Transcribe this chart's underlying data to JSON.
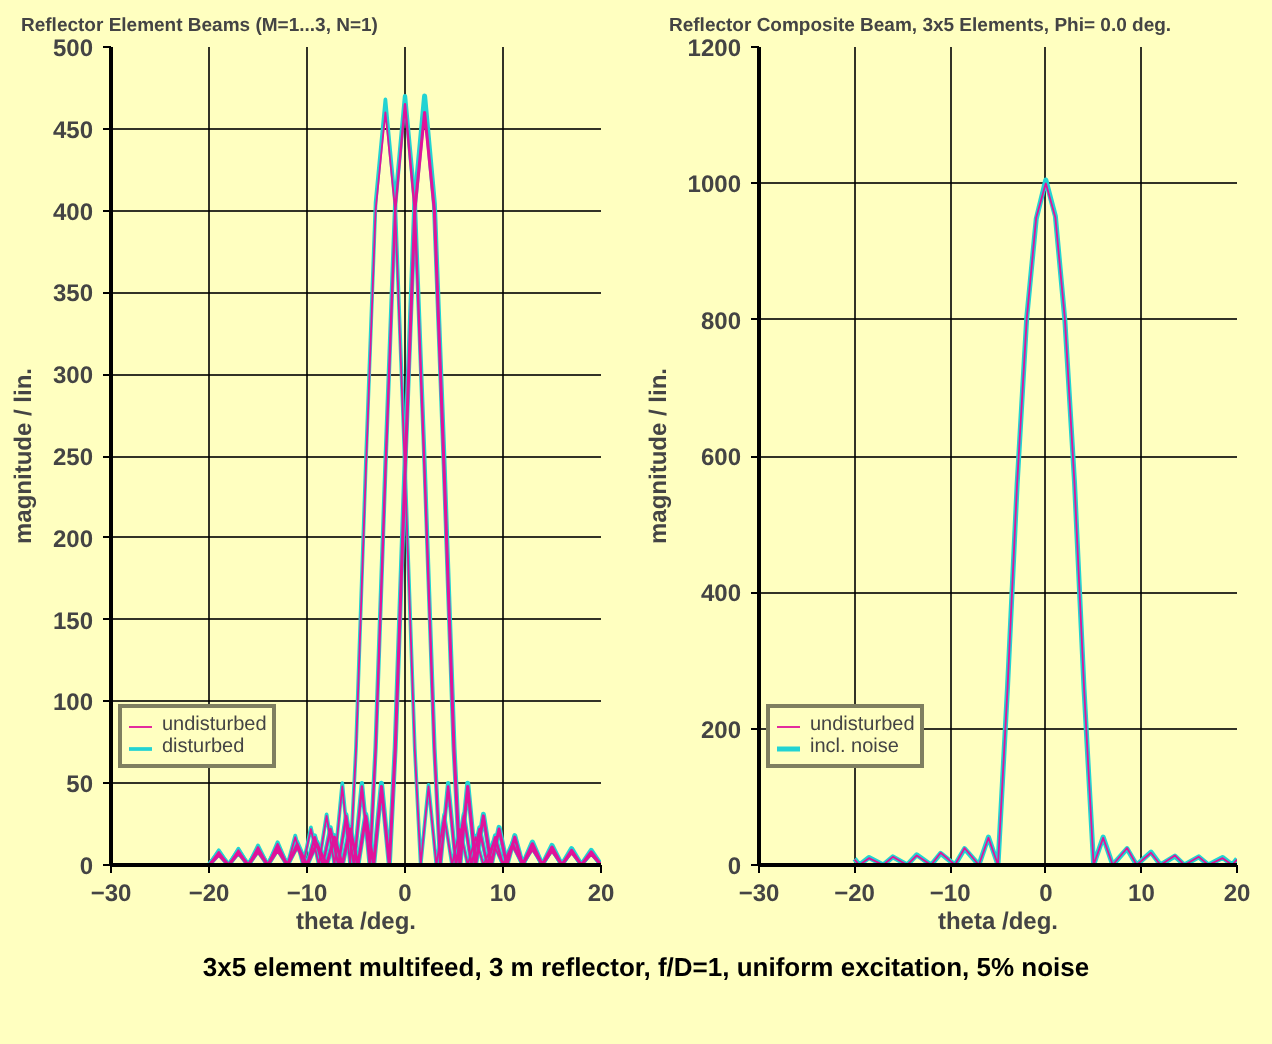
{
  "chart_data": [
    {
      "type": "line",
      "title": "Reflector  Element Beams (M=1...3, N=1)",
      "xlabel": "theta /deg.",
      "ylabel": "magnitude / lin.",
      "xlim": [
        -30,
        20
      ],
      "xticks": [
        -30,
        -20,
        -10,
        0,
        10,
        20
      ],
      "ylim": [
        0,
        500
      ],
      "yticks": [
        0,
        50,
        100,
        150,
        200,
        250,
        300,
        350,
        400,
        450,
        500
      ],
      "grid": true,
      "legend": "bottom left",
      "annotations": [
        "3x5 element multifeed, 3 m reflector, f/D=1, uniform excitation, 5% noise"
      ],
      "series": [
        {
          "name": "undisturbed",
          "color": "#e0139a",
          "x": [
            -20,
            -19,
            -18,
            -17,
            -16,
            -15,
            -14,
            -13,
            -12,
            -11.2,
            -10.4,
            -9.6,
            -8.8,
            -8,
            -7.2,
            -6.4,
            -5.6,
            -5,
            -4,
            -3,
            -2,
            -1,
            0,
            1,
            1.6,
            2.4,
            3.2,
            4,
            4.8,
            5.6,
            6.4,
            7.2,
            8,
            9,
            10,
            11,
            12,
            13,
            14,
            15,
            16,
            17,
            18,
            19,
            20
          ],
          "values": [
            0,
            8,
            0,
            9,
            0,
            11,
            0,
            13,
            0,
            17,
            0,
            22,
            0,
            30,
            0,
            48,
            0,
            70,
            240,
            400,
            460,
            400,
            240,
            70,
            0,
            48,
            0,
            30,
            0,
            22,
            0,
            17,
            0,
            13,
            0,
            11,
            0,
            9,
            0,
            8,
            0,
            7,
            0,
            6,
            0
          ]
        },
        {
          "color": "#e0139a",
          "x": [
            -20,
            -19,
            -18,
            -17,
            -16,
            -15,
            -14,
            -13,
            -12,
            -11,
            -10,
            -9.2,
            -8.4,
            -7.6,
            -6.8,
            -6,
            -5.2,
            -4.4,
            -3.6,
            -3,
            -2,
            -1,
            0,
            1,
            2,
            3,
            3.6,
            4.4,
            5.2,
            6,
            6.8,
            7.6,
            8.4,
            9.2,
            10,
            11,
            12,
            13,
            14,
            15,
            16,
            17,
            18,
            19,
            20
          ],
          "values": [
            0,
            7,
            0,
            8,
            0,
            9,
            0,
            11,
            0,
            13,
            0,
            17,
            0,
            22,
            0,
            30,
            0,
            48,
            0,
            70,
            240,
            400,
            465,
            400,
            240,
            70,
            0,
            48,
            0,
            30,
            0,
            22,
            0,
            17,
            0,
            13,
            0,
            11,
            0,
            9,
            0,
            8,
            0,
            7,
            0
          ]
        },
        {
          "color": "#e0139a",
          "x": [
            -20,
            -19,
            -18,
            -17,
            -16,
            -15,
            -14,
            -13,
            -12,
            -11,
            -10,
            -9,
            -8,
            -7.2,
            -6.4,
            -5.6,
            -4.8,
            -4,
            -3.2,
            -2.4,
            -1.6,
            -1,
            0,
            1,
            2,
            3,
            4,
            5,
            5.6,
            6.4,
            7.2,
            8,
            8.8,
            9.6,
            10.4,
            11.2,
            12,
            13,
            14,
            15,
            16,
            17,
            18,
            19,
            20
          ],
          "values": [
            0,
            6,
            0,
            7,
            0,
            8,
            0,
            9,
            0,
            11,
            0,
            13,
            0,
            17,
            0,
            22,
            0,
            30,
            0,
            48,
            0,
            70,
            240,
            400,
            460,
            400,
            240,
            70,
            0,
            48,
            0,
            30,
            0,
            22,
            0,
            17,
            0,
            13,
            0,
            11,
            0,
            9,
            0,
            8,
            0
          ]
        },
        {
          "name": "disturbed",
          "color": "#22d3d3",
          "x": [
            -20,
            -19,
            -18,
            -17,
            -16,
            -15,
            -14,
            -13,
            -12,
            -11.2,
            -10.4,
            -9.6,
            -8.8,
            -8,
            -7.2,
            -6.4,
            -5.6,
            -5,
            -4,
            -3,
            -2,
            -1,
            0,
            1,
            1.6,
            2.4,
            3.2,
            4,
            4.8,
            5.6,
            6.4,
            7.2,
            8,
            9,
            10,
            11,
            12,
            13,
            14,
            15,
            16,
            17,
            18,
            19,
            20
          ],
          "values": [
            0,
            9,
            0,
            10,
            0,
            12,
            0,
            14,
            0,
            18,
            0,
            23,
            0,
            31,
            0,
            50,
            0,
            72,
            245,
            405,
            468,
            404,
            243,
            71,
            0,
            49,
            0,
            31,
            0,
            23,
            0,
            18,
            0,
            14,
            0,
            12,
            0,
            10,
            0,
            9,
            0,
            8,
            0,
            7,
            0
          ]
        },
        {
          "color": "#22d3d3",
          "x": [
            -20,
            -19,
            -18,
            -17,
            -16,
            -15,
            -14,
            -13,
            -12,
            -11,
            -10,
            -9.2,
            -8.4,
            -7.6,
            -6.8,
            -6,
            -5.2,
            -4.4,
            -3.6,
            -3,
            -2,
            -1,
            0,
            1,
            2,
            3,
            3.6,
            4.4,
            5.2,
            6,
            6.8,
            7.6,
            8.4,
            9.2,
            10,
            11,
            12,
            13,
            14,
            15,
            16,
            17,
            18,
            19,
            20
          ],
          "values": [
            0,
            8,
            0,
            9,
            0,
            10,
            0,
            12,
            0,
            14,
            0,
            18,
            0,
            23,
            0,
            31,
            0,
            50,
            0,
            72,
            244,
            404,
            470,
            405,
            245,
            72,
            0,
            50,
            0,
            31,
            0,
            23,
            0,
            18,
            0,
            14,
            0,
            12,
            0,
            10,
            0,
            9,
            0,
            8,
            0
          ]
        },
        {
          "color": "#22d3d3",
          "x": [
            -20,
            -19,
            -18,
            -17,
            -16,
            -15,
            -14,
            -13,
            -12,
            -11,
            -10,
            -9,
            -8,
            -7.2,
            -6.4,
            -5.6,
            -4.8,
            -4,
            -3.2,
            -2.4,
            -1.6,
            -1,
            0,
            1,
            2,
            3,
            4,
            5,
            5.6,
            6.4,
            7.2,
            8,
            8.8,
            9.6,
            10.4,
            11.2,
            12,
            13,
            14,
            15,
            16,
            17,
            18,
            19,
            20
          ],
          "values": [
            0,
            7,
            0,
            8,
            0,
            9,
            0,
            10,
            0,
            12,
            0,
            14,
            0,
            18,
            0,
            23,
            0,
            31,
            0,
            50,
            0,
            72,
            245,
            405,
            470,
            404,
            244,
            72,
            0,
            50,
            0,
            31,
            0,
            23,
            0,
            18,
            0,
            14,
            0,
            12,
            0,
            10,
            0,
            9,
            0
          ]
        }
      ]
    },
    {
      "type": "line",
      "title": "Reflector Composite Beam, 3x5 Elements, Phi= 0.0 deg.",
      "xlabel": "theta /deg.",
      "ylabel": "magnitude / lin.",
      "xlim": [
        -30,
        20
      ],
      "xticks": [
        -30,
        -20,
        -10,
        0,
        10,
        20
      ],
      "ylim": [
        0,
        1200
      ],
      "yticks": [
        0,
        200,
        400,
        600,
        800,
        1000,
        1200
      ],
      "grid": true,
      "legend": "bottom left",
      "series": [
        {
          "name": "undisturbed",
          "color": "#e0139a",
          "x": [
            -20,
            -19.5,
            -18.5,
            -17,
            -16,
            -14.5,
            -13.5,
            -12,
            -11,
            -9.5,
            -8.5,
            -7,
            -6,
            -5,
            -4,
            -3,
            -2,
            -1,
            0,
            1,
            2,
            3,
            4,
            5,
            6,
            7,
            8.5,
            9.5,
            11,
            12,
            13.5,
            14.5,
            16,
            17,
            18.5,
            19.5,
            20
          ],
          "values": [
            8,
            0,
            10,
            0,
            12,
            0,
            14,
            0,
            18,
            0,
            25,
            0,
            40,
            0,
            260,
            560,
            800,
            950,
            1000,
            950,
            800,
            560,
            260,
            0,
            40,
            0,
            25,
            0,
            18,
            0,
            14,
            0,
            12,
            0,
            10,
            0,
            8
          ]
        },
        {
          "name": "incl. noise",
          "color": "#22d3d3",
          "x": [
            -20,
            -19.5,
            -18.5,
            -17,
            -16,
            -14.5,
            -13.5,
            -12,
            -11,
            -9.5,
            -8.5,
            -7,
            -6,
            -5,
            -4,
            -3,
            -2,
            -1,
            0,
            1,
            2,
            3,
            4,
            5,
            6,
            7,
            8.5,
            9.5,
            11,
            12,
            13.5,
            14.5,
            16,
            17,
            18.5,
            19.5,
            20
          ],
          "values": [
            9,
            0,
            11,
            0,
            12,
            0,
            15,
            0,
            17,
            0,
            24,
            0,
            41,
            0,
            262,
            558,
            802,
            948,
            1005,
            952,
            798,
            562,
            258,
            0,
            41,
            0,
            24,
            0,
            19,
            0,
            13,
            0,
            12,
            0,
            11,
            0,
            9
          ]
        }
      ]
    }
  ]
}
